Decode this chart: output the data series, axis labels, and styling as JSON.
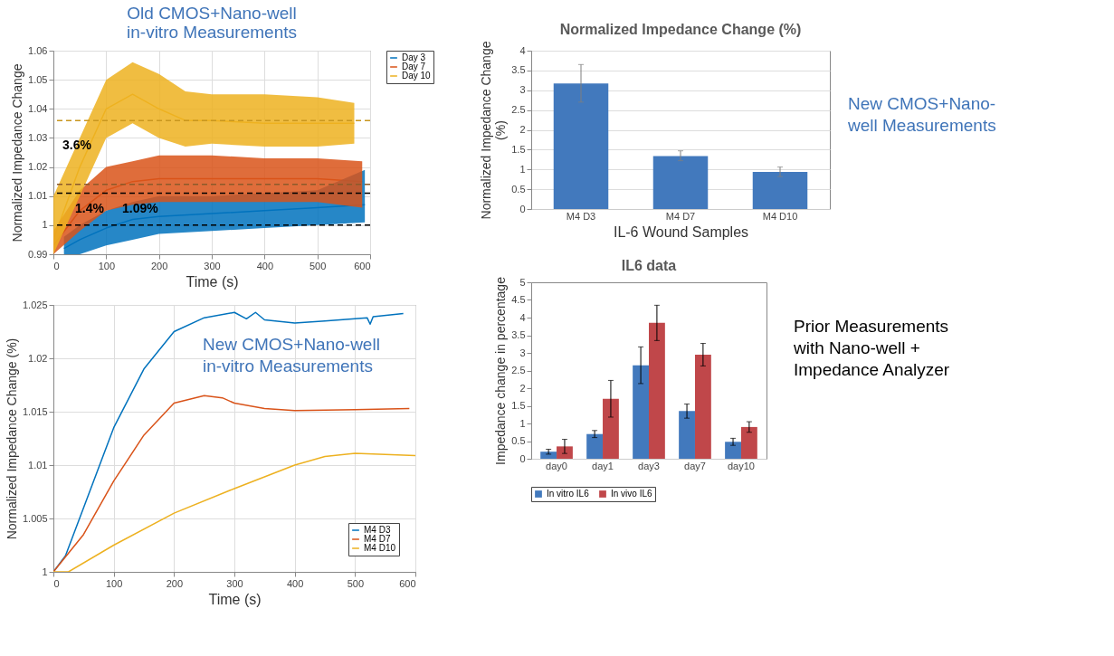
{
  "chart_data": [
    {
      "type": "line",
      "title": "Old CMOS+Nano-well\nin-vitro Measurements",
      "xlabel": "Time (s)",
      "ylabel": "Normalized Impedance Change",
      "xlim": [
        0,
        600
      ],
      "xticks": [
        0,
        100,
        200,
        300,
        400,
        500,
        600
      ],
      "ylim": [
        0.99,
        1.06
      ],
      "yticks": [
        0.99,
        1,
        1.01,
        1.02,
        1.03,
        1.04,
        1.05,
        1.06
      ],
      "grid": true,
      "legend": "right",
      "series": [
        {
          "name": "Day 3",
          "color": "#0072bd",
          "x": [
            20,
            50,
            100,
            150,
            200,
            300,
            400,
            500,
            590
          ],
          "values": [
            0.992,
            0.995,
            0.999,
            1.002,
            1.003,
            1.004,
            1.005,
            1.006,
            1.007
          ],
          "lower": [
            0.99,
            0.99,
            0.993,
            0.995,
            0.997,
            0.998,
            0.999,
            1.0,
            1.001
          ],
          "upper": [
            0.996,
            1.0,
            1.005,
            1.008,
            1.01,
            1.01,
            1.011,
            1.012,
            1.019
          ]
        },
        {
          "name": "Day 7",
          "color": "#d95319",
          "x": [
            0,
            50,
            100,
            150,
            200,
            300,
            400,
            500,
            585
          ],
          "values": [
            0.993,
            1.005,
            1.012,
            1.015,
            1.016,
            1.016,
            1.016,
            1.016,
            1.015
          ],
          "lower": [
            0.99,
            0.998,
            1.005,
            1.007,
            1.008,
            1.008,
            1.008,
            1.008,
            1.006
          ],
          "upper": [
            0.998,
            1.012,
            1.02,
            1.022,
            1.024,
            1.024,
            1.023,
            1.023,
            1.022
          ]
        },
        {
          "name": "Day 10",
          "color": "#edb120",
          "x": [
            0,
            50,
            100,
            150,
            200,
            250,
            300,
            400,
            500,
            570
          ],
          "values": [
            0.995,
            1.02,
            1.04,
            1.045,
            1.04,
            1.036,
            1.036,
            1.035,
            1.035,
            1.035
          ],
          "lower": [
            0.99,
            1.01,
            1.03,
            1.035,
            1.03,
            1.027,
            1.028,
            1.027,
            1.027,
            1.028
          ],
          "upper": [
            1.01,
            1.03,
            1.05,
            1.056,
            1.052,
            1.046,
            1.045,
            1.045,
            1.044,
            1.042
          ]
        }
      ],
      "ref_lines": [
        {
          "axis": "y",
          "value": 1,
          "color": "#000000",
          "line_style": "dashed"
        },
        {
          "axis": "y",
          "value": 1.011,
          "color": "#000000",
          "line_style": "dashed"
        },
        {
          "axis": "y",
          "value": 1.014,
          "color": "#8b5a2b",
          "line_style": "dashed"
        },
        {
          "axis": "y",
          "value": 1.036,
          "color": "#c8961e",
          "line_style": "dashed"
        }
      ],
      "annotations": [
        "3.6%",
        "1.4%",
        "1.09%"
      ]
    },
    {
      "type": "bar",
      "title": "Normalized Impedance Change (%)",
      "xlabel": "IL-6 Wound Samples",
      "ylabel": "Normalized Impedance Change\n(%)",
      "categories": [
        "M4 D3",
        "M4 D7",
        "M4 D10"
      ],
      "ylim": [
        0,
        4
      ],
      "yticks": [
        0,
        0.5,
        1,
        1.5,
        2,
        2.5,
        3,
        3.5,
        4
      ],
      "grid": "y",
      "series": [
        {
          "color": "#4279bd",
          "values": [
            3.17,
            1.34,
            0.94
          ],
          "errors": [
            [
              2.7,
              3.65
            ],
            [
              1.22,
              1.47
            ],
            [
              0.82,
              1.06
            ]
          ]
        }
      ],
      "annotations": [
        "New CMOS+Nano-\nwell Measurements"
      ]
    },
    {
      "type": "line",
      "xlabel": "Time (s)",
      "ylabel": "Normalized Impedance Change (%)",
      "xlim": [
        0,
        600
      ],
      "xticks": [
        0,
        100,
        200,
        300,
        400,
        500,
        600
      ],
      "ylim": [
        1,
        1.025
      ],
      "yticks": [
        1,
        1.005,
        1.01,
        1.015,
        1.02,
        1.025
      ],
      "grid": true,
      "legend": "bottom right",
      "series": [
        {
          "name": "M4 D3",
          "color": "#0072bd",
          "x": [
            0,
            20,
            50,
            100,
            150,
            200,
            250,
            300,
            320,
            335,
            350,
            400,
            450,
            500,
            520,
            525,
            530,
            580
          ],
          "values": [
            1.0,
            1.0015,
            1.006,
            1.0135,
            1.019,
            1.0225,
            1.0238,
            1.0243,
            1.0237,
            1.0243,
            1.0236,
            1.0233,
            1.0235,
            1.0237,
            1.0238,
            1.0232,
            1.0239,
            1.0242
          ]
        },
        {
          "name": "M4 D7",
          "color": "#d95319",
          "x": [
            0,
            50,
            100,
            150,
            200,
            250,
            280,
            300,
            350,
            400,
            500,
            590
          ],
          "values": [
            1.0,
            1.0035,
            1.0085,
            1.0128,
            1.0158,
            1.0165,
            1.0163,
            1.0158,
            1.0153,
            1.0151,
            1.0152,
            1.0153
          ]
        },
        {
          "name": "M4 D10",
          "color": "#edb120",
          "x": [
            0,
            25,
            100,
            200,
            300,
            400,
            450,
            500,
            550,
            600
          ],
          "values": [
            1.0,
            1.0,
            1.0025,
            1.0055,
            1.0078,
            1.01,
            1.0108,
            1.0111,
            1.011,
            1.0109
          ]
        }
      ],
      "annotations": [
        "New CMOS+Nano-well\nin-vitro Measurements"
      ]
    },
    {
      "type": "bar",
      "title": "IL6 data",
      "ylabel": "Impedance change in percentage",
      "categories": [
        "day0",
        "day1",
        "day3",
        "day7",
        "day10"
      ],
      "ylim": [
        0,
        5
      ],
      "yticks": [
        0,
        0.5,
        1,
        1.5,
        2,
        2.5,
        3,
        3.5,
        4,
        4.5,
        5
      ],
      "legend": "bottom",
      "series": [
        {
          "name": "In vitro IL6",
          "color": "#4279bd",
          "values": [
            0.2,
            0.7,
            2.65,
            1.35,
            0.48
          ],
          "errors": [
            0.07,
            0.1,
            0.52,
            0.2,
            0.1
          ]
        },
        {
          "name": "In vivo IL6",
          "color": "#c0474a",
          "values": [
            0.35,
            1.7,
            3.85,
            2.95,
            0.9
          ],
          "errors": [
            0.2,
            0.52,
            0.5,
            0.32,
            0.15
          ]
        }
      ],
      "annotations": [
        "Prior Measurements\nwith Nano-well +\nImpedance Analyzer"
      ]
    }
  ]
}
